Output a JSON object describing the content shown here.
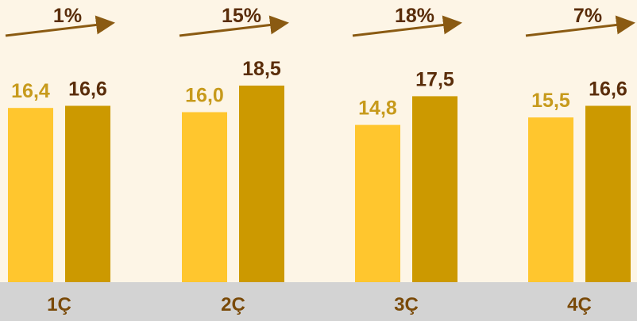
{
  "colors": {
    "background": "#fdf5e6",
    "series_1": "#ffc62e",
    "series_2": "#cc9900",
    "label_series_1": "#c79a1c",
    "label_series_2": "#5a2d0a",
    "arrow": "#8a5a12",
    "change_text": "#5a2d0a",
    "category_band": "#d3d3d3",
    "category_text": "#7a4a08"
  },
  "chart_data": {
    "type": "bar",
    "title": "",
    "xlabel": "",
    "ylabel": "",
    "categories": [
      "1Ç",
      "2Ç",
      "3Ç",
      "4Ç"
    ],
    "series": [
      {
        "values": [
          16.4,
          16.0,
          14.8,
          15.5
        ],
        "labels": [
          "16,4",
          "16,0",
          "14,8",
          "15,5"
        ]
      },
      {
        "values": [
          16.6,
          18.5,
          17.5,
          16.6
        ],
        "labels": [
          "16,6",
          "18,5",
          "17,5",
          "16,6"
        ]
      }
    ],
    "changes": [
      "1%",
      "15%",
      "18%",
      "7%"
    ],
    "ylim": [
      0,
      18.5
    ],
    "grid": false,
    "legend": "none"
  }
}
